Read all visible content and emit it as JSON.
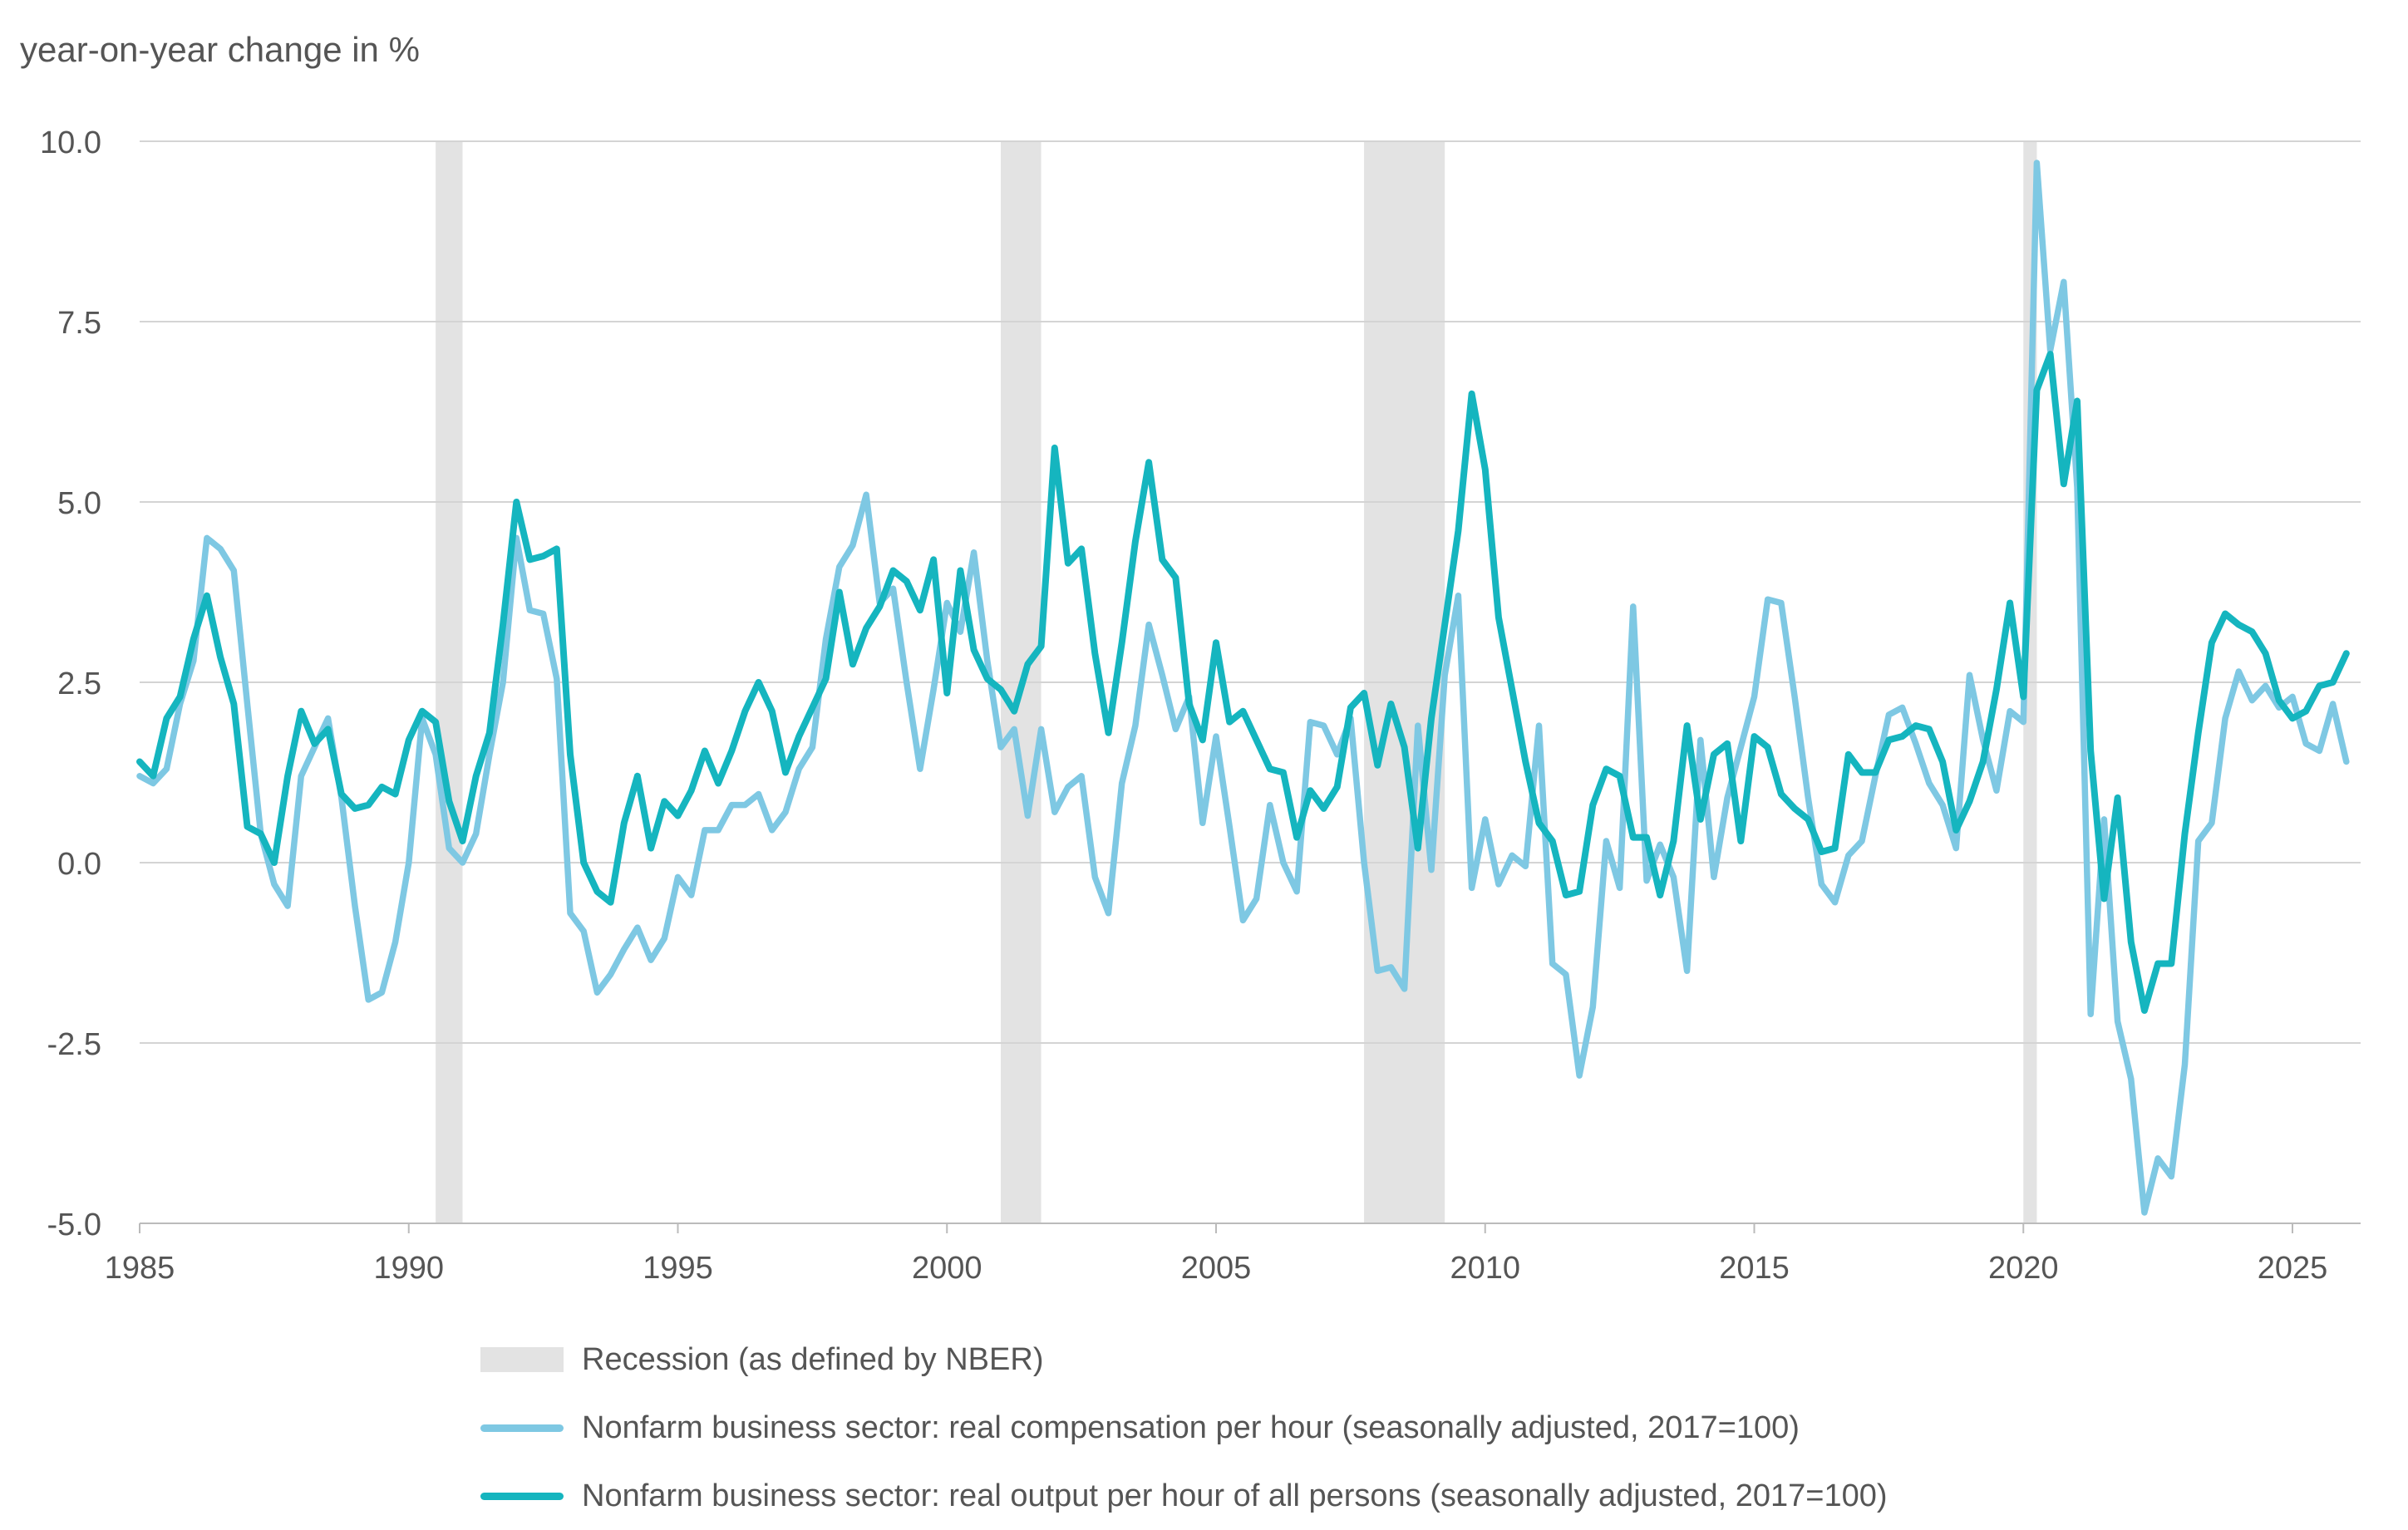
{
  "chart_data": {
    "type": "line",
    "ylabel": "year-on-year change in %",
    "xlabel": "",
    "xlim": [
      1985,
      2026.2
    ],
    "ylim": [
      -5,
      10
    ],
    "x_ticks": [
      "1985",
      "1990",
      "1995",
      "2000",
      "2005",
      "2010",
      "2015",
      "2020",
      "2025"
    ],
    "y_ticks": [
      "10.0",
      "7.5",
      "5.0",
      "2.5",
      "0.0",
      "-2.5",
      "-5.0"
    ],
    "grid": "horizontal",
    "legend_placement": "bottom",
    "recessions": [
      [
        1990.5,
        1991.0
      ],
      [
        2001.0,
        2001.75
      ],
      [
        2007.75,
        2009.25
      ],
      [
        2020.0,
        2020.25
      ]
    ],
    "legend": {
      "recession": "Recession (as defined by NBER)",
      "compensation": "Nonfarm business sector: real compensation per hour (seasonally adjusted, 2017=100)",
      "output": "Nonfarm business sector: real output per hour of all persons (seasonally adjusted, 2017=100)"
    },
    "colors": {
      "compensation": "#7ec8e3",
      "output": "#15b5bf",
      "recession": "#e3e3e3",
      "grid": "#d4d4d4",
      "axis": "#bbbbbb"
    },
    "series": [
      {
        "name": "Nonfarm business sector: real compensation per hour (seasonally adjusted, 2017=100)",
        "key": "compensation",
        "x_start": 1985.0,
        "x_step": 0.25,
        "values": [
          1.2,
          1.1,
          1.3,
          2.2,
          2.8,
          4.5,
          4.35,
          4.05,
          2.2,
          0.4,
          -0.3,
          -0.6,
          1.2,
          1.6,
          2.0,
          0.9,
          -0.6,
          -1.9,
          -1.8,
          -1.1,
          0.0,
          2.0,
          1.5,
          0.2,
          0.0,
          0.4,
          1.5,
          2.5,
          4.5,
          3.5,
          3.45,
          2.55,
          -0.7,
          -0.95,
          -1.8,
          -1.55,
          -1.2,
          -0.9,
          -1.35,
          -1.05,
          -0.2,
          -0.45,
          0.45,
          0.45,
          0.8,
          0.8,
          0.95,
          0.45,
          0.7,
          1.3,
          1.6,
          3.1,
          4.1,
          4.4,
          5.1,
          3.6,
          3.8,
          2.5,
          1.3,
          2.4,
          3.6,
          3.2,
          4.3,
          2.8,
          1.6,
          1.85,
          0.65,
          1.85,
          0.7,
          1.05,
          1.2,
          -0.2,
          -0.7,
          1.1,
          1.9,
          3.3,
          2.6,
          1.85,
          2.3,
          0.55,
          1.75,
          0.5,
          -0.8,
          -0.5,
          0.8,
          0.0,
          -0.4,
          1.95,
          1.9,
          1.5,
          2.0,
          0.0,
          -1.5,
          -1.45,
          -1.75,
          1.9,
          -0.1,
          2.6,
          3.7,
          -0.35,
          0.6,
          -0.3,
          0.1,
          -0.05,
          1.9,
          -1.4,
          -1.55,
          -2.95,
          -2.0,
          0.3,
          -0.35,
          3.55,
          -0.25,
          0.25,
          -0.2,
          -1.5,
          1.7,
          -0.2,
          0.9,
          1.6,
          2.3,
          3.65,
          3.6,
          2.3,
          0.9,
          -0.3,
          -0.55,
          0.1,
          0.3,
          1.2,
          2.05,
          2.15,
          1.65,
          1.1,
          0.8,
          0.2,
          2.6,
          1.7,
          1.0,
          2.1,
          1.95,
          9.7,
          7.1,
          8.05,
          5.2,
          -2.1,
          0.6,
          -2.2,
          -3.0,
          -4.85,
          -4.1,
          -4.35,
          -2.8,
          0.3,
          0.55,
          2.0,
          2.65,
          2.25,
          2.45,
          2.15,
          2.3,
          1.65,
          1.55,
          2.2,
          1.4
        ]
      },
      {
        "name": "Nonfarm business sector: real output per hour of all persons (seasonally adjusted, 2017=100)",
        "key": "output",
        "x_start": 1985.0,
        "x_step": 0.25,
        "values": [
          1.4,
          1.2,
          2.0,
          2.3,
          3.1,
          3.7,
          2.85,
          2.2,
          0.5,
          0.4,
          0.0,
          1.2,
          2.1,
          1.65,
          1.85,
          0.95,
          0.75,
          0.8,
          1.05,
          0.95,
          1.7,
          2.1,
          1.95,
          0.85,
          0.3,
          1.2,
          1.8,
          3.3,
          5.0,
          4.2,
          4.25,
          4.35,
          1.5,
          0.0,
          -0.4,
          -0.55,
          0.55,
          1.2,
          0.2,
          0.85,
          0.65,
          1.0,
          1.55,
          1.1,
          1.55,
          2.1,
          2.5,
          2.1,
          1.25,
          1.75,
          2.15,
          2.55,
          3.75,
          2.75,
          3.25,
          3.55,
          4.05,
          3.9,
          3.5,
          4.2,
          2.35,
          4.05,
          2.95,
          2.55,
          2.4,
          2.1,
          2.75,
          3.0,
          5.75,
          4.15,
          4.35,
          2.9,
          1.8,
          3.05,
          4.45,
          5.55,
          4.2,
          3.95,
          2.2,
          1.7,
          3.05,
          1.95,
          2.1,
          1.7,
          1.3,
          1.25,
          0.35,
          1.0,
          0.75,
          1.05,
          2.15,
          2.35,
          1.35,
          2.2,
          1.6,
          0.2,
          2.0,
          3.3,
          4.6,
          6.5,
          5.45,
          3.4,
          2.4,
          1.4,
          0.55,
          0.3,
          -0.45,
          -0.4,
          0.8,
          1.3,
          1.2,
          0.35,
          0.35,
          -0.45,
          0.3,
          1.9,
          0.6,
          1.5,
          1.65,
          0.3,
          1.75,
          1.6,
          0.95,
          0.75,
          0.6,
          0.15,
          0.2,
          1.5,
          1.25,
          1.25,
          1.7,
          1.75,
          1.9,
          1.85,
          1.4,
          0.45,
          0.85,
          1.4,
          2.4,
          3.6,
          2.3,
          6.55,
          7.05,
          5.25,
          6.4,
          1.55,
          -0.5,
          0.9,
          -1.1,
          -2.05,
          -1.4,
          -1.4,
          0.4,
          1.8,
          3.05,
          3.45,
          3.3,
          3.2,
          2.9,
          2.25,
          2.0,
          2.1,
          2.45,
          2.5,
          2.9
        ]
      }
    ]
  }
}
